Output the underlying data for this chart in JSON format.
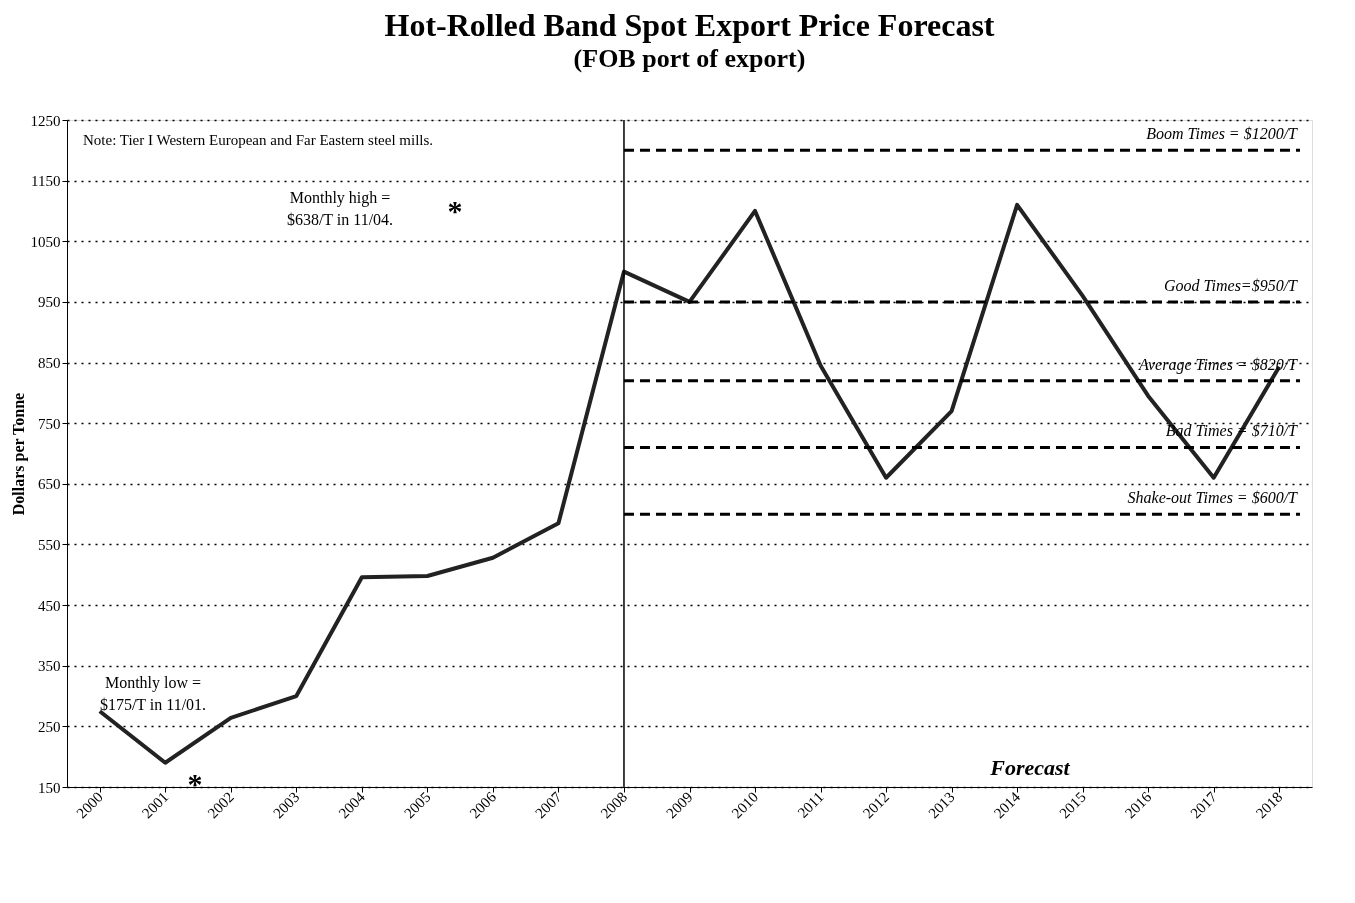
{
  "chart_data": {
    "type": "line",
    "title": "Hot-Rolled Band Spot Export Price Forecast",
    "subtitle": "(FOB port of export)",
    "ylabel": "Dollars per Tonne",
    "categories": [
      "2000",
      "2001",
      "2002",
      "2003",
      "2004",
      "2005",
      "2006",
      "2007",
      "2008",
      "2009",
      "2010",
      "2011",
      "2012",
      "2013",
      "2014",
      "2015",
      "2016",
      "2017",
      "2018"
    ],
    "series": [
      {
        "color": "#222222",
        "values": [
          275,
          190,
          264,
          300,
          496,
          498,
          528,
          585,
          1000,
          950,
          1100,
          845,
          660,
          770,
          1110,
          960,
          795,
          660,
          843
        ]
      }
    ],
    "ylim": [
      150,
      1250
    ],
    "yticks": [
      150,
      250,
      350,
      450,
      550,
      650,
      750,
      850,
      950,
      1050,
      1150,
      1250
    ],
    "grid": "y",
    "marker": "none",
    "line_style": "solid",
    "ref_lines": [
      {
        "axis": "x",
        "value": "2008",
        "color": "#000000",
        "line_style": "solid"
      },
      {
        "axis": "y",
        "value": 1200,
        "label": "Boom Times = $1200/T",
        "color": "#000000",
        "line_style": "dashed"
      },
      {
        "axis": "y",
        "value": 950,
        "label": "Good Times=$950/T",
        "color": "#000000",
        "line_style": "dashed"
      },
      {
        "axis": "y",
        "value": 820,
        "label": "Average Times = $820/T",
        "color": "#000000",
        "line_style": "dashed"
      },
      {
        "axis": "y",
        "value": 710,
        "label": "Bad Times = $710/T",
        "color": "#000000",
        "line_style": "dashed"
      },
      {
        "axis": "y",
        "value": 600,
        "label": "Shake-out Times = $600/T",
        "color": "#000000",
        "line_style": "dashed"
      }
    ],
    "annotations": [
      "Note:  Tier I Western European and Far Eastern steel mills.",
      "Monthly high =\n$638/T in 11/04.",
      "*",
      "Monthly low =\n$175/T in 11/01.",
      "*",
      "Forecast"
    ]
  }
}
